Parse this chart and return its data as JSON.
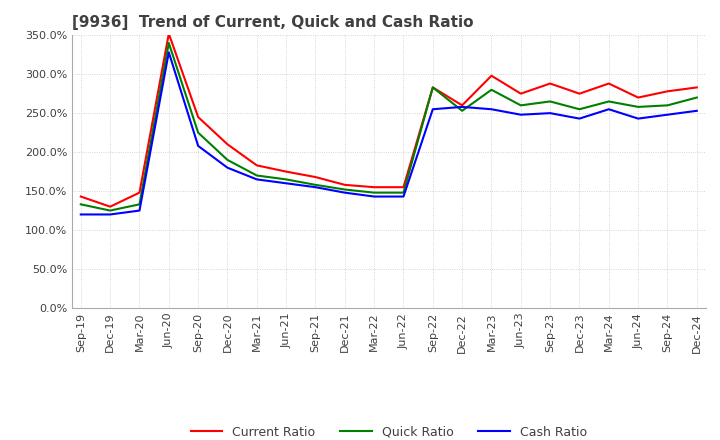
{
  "title": "[9936]  Trend of Current, Quick and Cash Ratio",
  "x_labels": [
    "Sep-19",
    "Dec-19",
    "Mar-20",
    "Jun-20",
    "Sep-20",
    "Dec-20",
    "Mar-21",
    "Jun-21",
    "Sep-21",
    "Dec-21",
    "Mar-22",
    "Jun-22",
    "Sep-22",
    "Dec-22",
    "Mar-23",
    "Jun-23",
    "Sep-23",
    "Dec-23",
    "Mar-24",
    "Jun-24",
    "Sep-24",
    "Dec-24"
  ],
  "current_ratio": [
    143,
    130,
    148,
    352,
    245,
    210,
    183,
    175,
    168,
    158,
    155,
    155,
    283,
    260,
    298,
    275,
    288,
    275,
    288,
    270,
    278,
    283
  ],
  "quick_ratio": [
    133,
    125,
    133,
    340,
    225,
    190,
    170,
    165,
    158,
    152,
    148,
    148,
    283,
    253,
    280,
    260,
    265,
    255,
    265,
    258,
    260,
    270
  ],
  "cash_ratio": [
    120,
    120,
    125,
    328,
    208,
    180,
    165,
    160,
    155,
    148,
    143,
    143,
    255,
    258,
    255,
    248,
    250,
    243,
    255,
    243,
    248,
    253
  ],
  "ylim": [
    0,
    350
  ],
  "yticks": [
    0,
    50,
    100,
    150,
    200,
    250,
    300,
    350
  ],
  "line_colors": {
    "current": "#ff0000",
    "quick": "#008000",
    "cash": "#0000ff"
  },
  "background_color": "#ffffff",
  "grid_color": "#c8c8c8",
  "title_color": "#404040",
  "title_fontsize": 11,
  "tick_fontsize": 8,
  "legend_fontsize": 9
}
